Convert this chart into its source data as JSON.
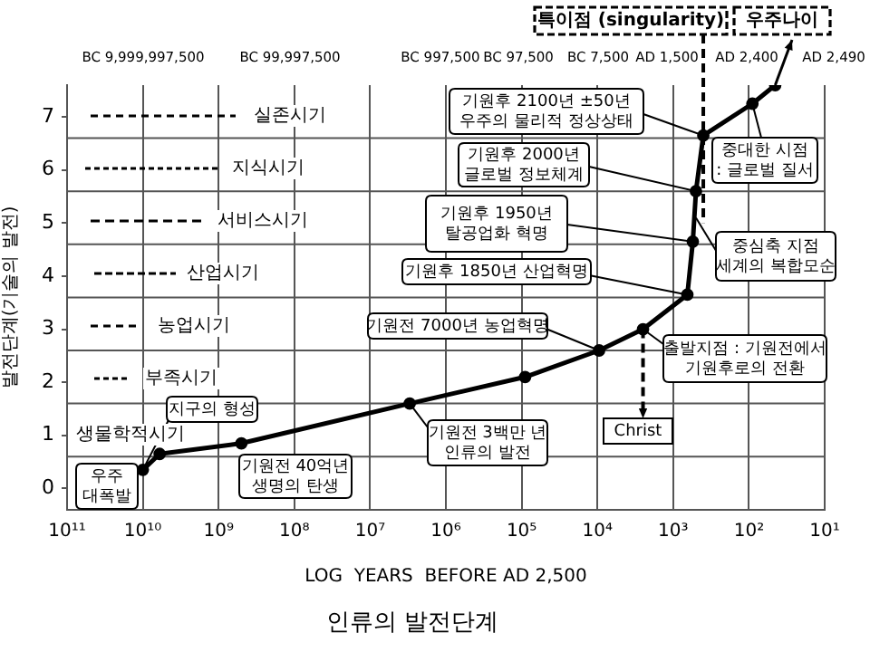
{
  "chart_data": {
    "type": "line",
    "title": "인류의 발전단계",
    "xlabel": "LOG  YEARS  BEFORE AD 2,500",
    "ylabel": "발전단계(기술의 발전)",
    "series": [
      {
        "color": "#000000",
        "x": [
          10000000000.0,
          6000000000.0,
          500000000.0,
          3000000.0,
          90000.0,
          9500,
          2500,
          650,
          550,
          500,
          400,
          90,
          45
        ],
        "values": [
          0.35,
          0.65,
          0.85,
          1.6,
          2.1,
          2.6,
          3.0,
          3.65,
          4.65,
          5.6,
          6.65,
          7.25,
          7.6
        ]
      }
    ],
    "log": "x",
    "xlim": [
      100000000000.0,
      10
    ],
    "xticks": [
      {
        "value": 100000000000.0,
        "label": "10¹¹"
      },
      {
        "value": 10000000000.0,
        "label": "10¹⁰"
      },
      {
        "value": 1000000000.0,
        "label": "10⁹"
      },
      {
        "value": 100000000.0,
        "label": "10⁸"
      },
      {
        "value": 10000000.0,
        "label": "10⁷"
      },
      {
        "value": 1000000.0,
        "label": "10⁶"
      },
      {
        "value": 100000.0,
        "label": "10⁵"
      },
      {
        "value": 10000.0,
        "label": "10⁴"
      },
      {
        "value": 1000.0,
        "label": "10³"
      },
      {
        "value": 100,
        "label": "10²"
      },
      {
        "value": 10,
        "label": "10¹"
      }
    ],
    "ylim": [
      -0.4,
      7.6
    ],
    "yticks": [
      0,
      1,
      2,
      3,
      4,
      5,
      6,
      7
    ],
    "grid": "x",
    "legend": false,
    "marker": "circle",
    "line_style": "solid",
    "ref_lines": [
      {
        "axis": "y",
        "value": 0.6,
        "color": "#555555"
      },
      {
        "axis": "y",
        "value": 1.6,
        "color": "#555555"
      },
      {
        "axis": "y",
        "value": 2.6,
        "color": "#555555"
      },
      {
        "axis": "y",
        "value": 3.6,
        "color": "#555555"
      },
      {
        "axis": "y",
        "value": 4.6,
        "color": "#555555"
      },
      {
        "axis": "y",
        "value": 5.6,
        "color": "#555555"
      },
      {
        "axis": "y",
        "value": 6.6,
        "color": "#555555"
      }
    ],
    "annotations": [
      {
        "text": "우주\n대폭발",
        "x": 10000000000.0,
        "y": 0.35
      },
      {
        "text": "지구의 형성",
        "x": 10000000000.0,
        "y": 0.35
      },
      "기원전 40억년\n생명의 탄생",
      {
        "text": "기원전 3백만 년\n인류의 발전",
        "x": 3000000.0,
        "y": 1.6
      },
      {
        "text": "기원전 7000년 농업혁명",
        "x": 9500,
        "y": 2.6
      },
      {
        "text": "출발지점 : 기원전에서\n기원후로의 전환",
        "x": 2500,
        "y": 3.0
      },
      {
        "text": "Christ",
        "x": 2500,
        "y": 3.0
      },
      {
        "text": "기원후 1850년 산업혁명",
        "x": 650,
        "y": 3.65
      },
      {
        "text": "기원후 1950년\n탈공업화 혁명",
        "x": 550,
        "y": 4.65
      },
      {
        "text": "기원후 2000년\n글로벌 정보체계",
        "x": 500,
        "y": 5.6
      },
      {
        "text": "기원후 2100년 ±50년\n우주의 물리적 정상상태",
        "x": 400,
        "y": 6.65
      },
      {
        "text": "중대한 시점\n: 글로벌 질서",
        "x": 90,
        "y": 7.25
      },
      {
        "text": "중심축 지점\n세계의 복합모순",
        "x": 500,
        "y": 5.1
      },
      {
        "text": "특이점 (singularity)",
        "x": 400,
        "y": 5.0
      },
      {
        "text": "우주나이",
        "x": 45,
        "y": 7.6
      },
      "실존시기",
      "지식시기",
      "서비스시기",
      "산업시기",
      "농업시기",
      "부족시기",
      "생물학적시기",
      "BC 9,999,997,500",
      "BC 99,997,500",
      "BC 997,500",
      "BC 97,500",
      "BC 7,500",
      "AD 1,500",
      "AD 2,400",
      "AD 2,490"
    ]
  }
}
